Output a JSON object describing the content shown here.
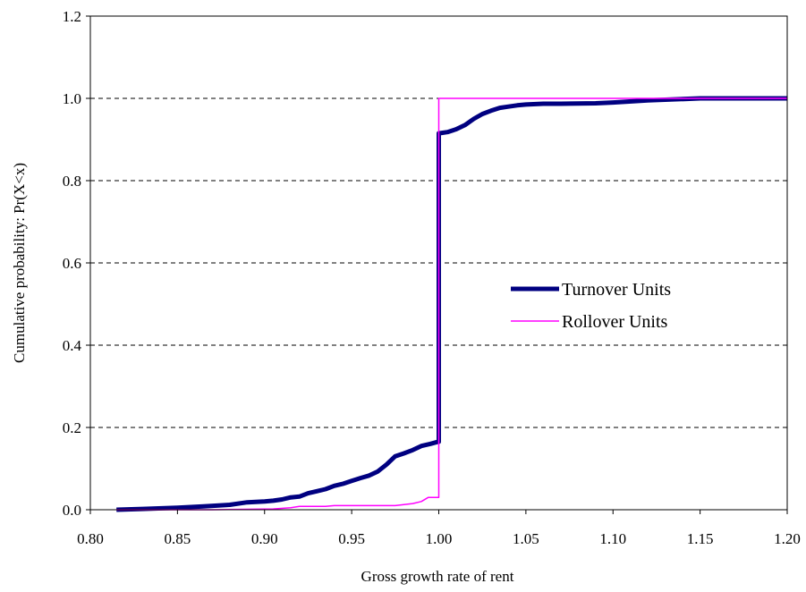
{
  "chart_data": {
    "type": "line",
    "title": "",
    "xlabel": "Gross growth rate of rent",
    "ylabel": "Cumulative probability: Pr(X<x)",
    "xlim": [
      0.8,
      1.2
    ],
    "ylim": [
      0.0,
      1.2
    ],
    "x_ticks": [
      "0.80",
      "0.85",
      "0.90",
      "0.95",
      "1.00",
      "1.05",
      "1.10",
      "1.15",
      "1.20"
    ],
    "y_ticks": [
      "0.0",
      "0.2",
      "0.4",
      "0.6",
      "0.8",
      "1.0",
      "1.2"
    ],
    "grid": "horizontal dashed",
    "legend_position": "center-right",
    "series": [
      {
        "name": "Turnover Units",
        "color": "#000080",
        "style": "thick",
        "points": [
          [
            0.815,
            0.0
          ],
          [
            0.83,
            0.002
          ],
          [
            0.85,
            0.005
          ],
          [
            0.865,
            0.008
          ],
          [
            0.88,
            0.012
          ],
          [
            0.89,
            0.018
          ],
          [
            0.9,
            0.02
          ],
          [
            0.905,
            0.022
          ],
          [
            0.91,
            0.025
          ],
          [
            0.915,
            0.03
          ],
          [
            0.92,
            0.032
          ],
          [
            0.925,
            0.04
          ],
          [
            0.93,
            0.045
          ],
          [
            0.935,
            0.05
          ],
          [
            0.94,
            0.058
          ],
          [
            0.945,
            0.063
          ],
          [
            0.95,
            0.07
          ],
          [
            0.955,
            0.077
          ],
          [
            0.96,
            0.083
          ],
          [
            0.965,
            0.093
          ],
          [
            0.97,
            0.11
          ],
          [
            0.975,
            0.13
          ],
          [
            0.98,
            0.137
          ],
          [
            0.985,
            0.145
          ],
          [
            0.99,
            0.155
          ],
          [
            0.995,
            0.16
          ],
          [
            0.9995,
            0.165
          ],
          [
            1.0,
            0.165
          ],
          [
            1.0,
            0.915
          ],
          [
            1.005,
            0.918
          ],
          [
            1.01,
            0.925
          ],
          [
            1.015,
            0.935
          ],
          [
            1.02,
            0.95
          ],
          [
            1.025,
            0.962
          ],
          [
            1.03,
            0.97
          ],
          [
            1.035,
            0.977
          ],
          [
            1.04,
            0.98
          ],
          [
            1.045,
            0.983
          ],
          [
            1.05,
            0.985
          ],
          [
            1.06,
            0.987
          ],
          [
            1.07,
            0.987
          ],
          [
            1.09,
            0.988
          ],
          [
            1.1,
            0.99
          ],
          [
            1.12,
            0.995
          ],
          [
            1.15,
            1.0
          ],
          [
            1.2,
            1.0
          ]
        ]
      },
      {
        "name": "Rollover Units",
        "color": "#ff00ff",
        "style": "thin",
        "points": [
          [
            0.815,
            0.0
          ],
          [
            0.87,
            0.0
          ],
          [
            0.905,
            0.002
          ],
          [
            0.915,
            0.005
          ],
          [
            0.92,
            0.008
          ],
          [
            0.935,
            0.008
          ],
          [
            0.94,
            0.01
          ],
          [
            0.975,
            0.01
          ],
          [
            0.985,
            0.015
          ],
          [
            0.99,
            0.02
          ],
          [
            0.994,
            0.03
          ],
          [
            1.0,
            0.03
          ],
          [
            1.0,
            1.0
          ],
          [
            1.2,
            1.0
          ]
        ]
      }
    ]
  }
}
